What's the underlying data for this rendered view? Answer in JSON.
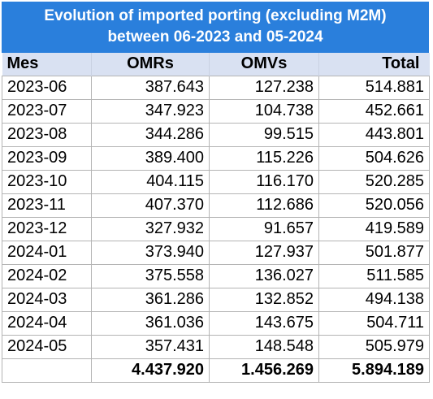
{
  "title": {
    "line1": "Evolution of imported porting (excluding M2M)",
    "line2": "between 06-2023 and 05-2024"
  },
  "headers": {
    "mes": "Mes",
    "omrs": "OMRs",
    "omvs": "OMVs",
    "total": "Total"
  },
  "rows": [
    {
      "mes": "2023-06",
      "omrs": "387.643",
      "omvs": "127.238",
      "total": "514.881"
    },
    {
      "mes": "2023-07",
      "omrs": "347.923",
      "omvs": "104.738",
      "total": "452.661"
    },
    {
      "mes": "2023-08",
      "omrs": "344.286",
      "omvs": "99.515",
      "total": "443.801"
    },
    {
      "mes": "2023-09",
      "omrs": "389.400",
      "omvs": "115.226",
      "total": "504.626"
    },
    {
      "mes": "2023-10",
      "omrs": "404.115",
      "omvs": "116.170",
      "total": "520.285"
    },
    {
      "mes": "2023-11",
      "omrs": "407.370",
      "omvs": "112.686",
      "total": "520.056"
    },
    {
      "mes": "2023-12",
      "omrs": "327.932",
      "omvs": "91.657",
      "total": "419.589"
    },
    {
      "mes": "2024-01",
      "omrs": "373.940",
      "omvs": "127.937",
      "total": "501.877"
    },
    {
      "mes": "2024-02",
      "omrs": "375.558",
      "omvs": "136.027",
      "total": "511.585"
    },
    {
      "mes": "2024-03",
      "omrs": "361.286",
      "omvs": "132.852",
      "total": "494.138"
    },
    {
      "mes": "2024-04",
      "omrs": "361.036",
      "omvs": "143.675",
      "total": "504.711"
    },
    {
      "mes": "2024-05",
      "omrs": "357.431",
      "omvs": "148.548",
      "total": "505.979"
    }
  ],
  "totals": {
    "mes": "",
    "omrs": "4.437.920",
    "omvs": "1.456.269",
    "total": "5.894.189"
  }
}
